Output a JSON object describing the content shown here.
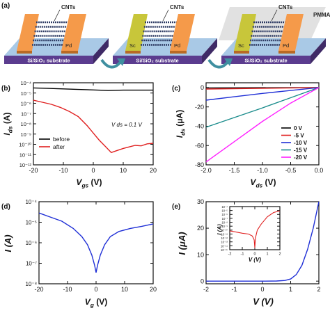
{
  "panels": {
    "a": {
      "label": "(a)",
      "devices": [
        {
          "substrate": "Si/SiO₂ substrate",
          "cnt": "CNTs",
          "contacts": [
            "",
            "Pd"
          ],
          "pmma": ""
        },
        {
          "substrate": "Si/SiO₂ substrate",
          "cnt": "CNTs",
          "contacts": [
            "Sc",
            "Pd"
          ],
          "pmma": ""
        },
        {
          "substrate": "Si/SiO₂ substrate",
          "cnt": "CNTs",
          "contacts": [
            "Sc",
            "Pd"
          ],
          "pmma": "PMMA"
        }
      ]
    },
    "b": {
      "label": "(b)",
      "annotation": "V_ds = 0.1 V"
    },
    "c": {
      "label": "(c)"
    },
    "d": {
      "label": "(d)"
    },
    "e": {
      "label": "(e)"
    }
  },
  "colors": {
    "pd": "#f59a4a",
    "sc": "#c8c63a",
    "substrate_top": "#a9c9e6",
    "substrate_side": "#5b3c8f",
    "cnt": "#2e3b63",
    "pmma": "#c9c9c9",
    "arrow": "#3f8fa0"
  },
  "chart_data": [
    {
      "panel": "b",
      "type": "line",
      "xlabel": "V_gs (V)",
      "ylabel": "I_ds (A)",
      "xlim": [
        -20,
        20
      ],
      "ylim": [
        -12,
        -4
      ],
      "yscale": "log",
      "xticks": [
        -20,
        -10,
        0,
        10,
        20
      ],
      "yticks": [
        -4,
        -5,
        -6,
        -7,
        -8,
        -9,
        -10,
        -11,
        -12
      ],
      "ytick_labels": [
        "10⁻⁴",
        "10⁻⁵",
        "10⁻⁶",
        "10⁻⁷",
        "10⁻⁸",
        "10⁻⁹",
        "10⁻¹⁰",
        "10⁻¹¹",
        "10⁻¹²"
      ],
      "legend": {
        "placement": "bottom-left"
      },
      "series": [
        {
          "name": "before",
          "color": "#000000",
          "x": [
            -20,
            -15,
            -10,
            -5,
            0,
            5,
            10,
            15,
            20
          ],
          "y": [
            -4.5,
            -4.55,
            -4.6,
            -4.65,
            -4.7,
            -4.75,
            -4.72,
            -4.72,
            -4.72
          ]
        },
        {
          "name": "after",
          "color": "#e02020",
          "x": [
            -20,
            -17,
            -14,
            -11,
            -8,
            -5,
            -2,
            0,
            2,
            4,
            6,
            8,
            10,
            12,
            14,
            16,
            18,
            20
          ],
          "y": [
            -5.7,
            -5.9,
            -6.1,
            -6.4,
            -6.8,
            -7.3,
            -8.2,
            -8.9,
            -9.6,
            -10.2,
            -10.8,
            -10.6,
            -10.4,
            -10.25,
            -10.1,
            -10.15,
            -9.95,
            -9.9
          ]
        }
      ]
    },
    {
      "panel": "c",
      "type": "line",
      "xlabel": "V_ds (V)",
      "ylabel": "I_ds (μA)",
      "xlim": [
        -2,
        0
      ],
      "ylim": [
        -80,
        5
      ],
      "xticks": [
        -2.0,
        -1.5,
        -1.0,
        -0.5,
        0.0
      ],
      "xtick_labels": [
        "-2.0",
        "-1.5",
        "-1.0",
        "-0.5",
        "0.0"
      ],
      "yticks": [
        0,
        -20,
        -40,
        -60,
        -80
      ],
      "legend": {
        "placement": "right"
      },
      "series": [
        {
          "name": "0 V",
          "color": "#000000",
          "x": [
            -2,
            0
          ],
          "y": [
            -0.3,
            0
          ]
        },
        {
          "name": "-5 V",
          "color": "#e02020",
          "x": [
            -2,
            0
          ],
          "y": [
            -1.5,
            0
          ]
        },
        {
          "name": "-10 V",
          "color": "#1f2fd6",
          "x": [
            -2,
            -1.5,
            -1,
            -0.5,
            0
          ],
          "y": [
            -13,
            -9.5,
            -6,
            -3,
            0
          ]
        },
        {
          "name": "-15 V",
          "color": "#1a8c8c",
          "x": [
            -2,
            -1.5,
            -1,
            -0.5,
            0
          ],
          "y": [
            -41,
            -31,
            -21,
            -10.5,
            0
          ]
        },
        {
          "name": "-20 V",
          "color": "#ff20ff",
          "x": [
            -2,
            -1.5,
            -1,
            -0.5,
            0
          ],
          "y": [
            -77,
            -56,
            -35,
            -16,
            0
          ]
        }
      ]
    },
    {
      "panel": "d",
      "type": "line",
      "xlabel": "V_g (V)",
      "ylabel": "I (A)",
      "xlim": [
        -20,
        20
      ],
      "ylim": [
        -8,
        -4
      ],
      "yscale": "log",
      "xticks": [
        -20,
        -10,
        0,
        10,
        20
      ],
      "yticks": [
        -4,
        -5,
        -6,
        -7,
        -8
      ],
      "ytick_labels": [
        "10⁻⁴",
        "10⁻⁵",
        "10⁻⁶",
        "10⁻⁷",
        "10⁻⁸"
      ],
      "series": [
        {
          "name": "",
          "color": "#1f2fd6",
          "x": [
            -20,
            -16,
            -12,
            -8,
            -5,
            -3,
            -1.5,
            -0.5,
            0,
            0.5,
            1.5,
            3,
            5,
            8,
            12,
            16,
            20
          ],
          "y": [
            -4.55,
            -4.75,
            -4.95,
            -5.3,
            -5.7,
            -6.1,
            -6.6,
            -7.1,
            -7.45,
            -7.1,
            -6.6,
            -6.1,
            -5.7,
            -5.45,
            -5.3,
            -5.2,
            -5.08
          ]
        }
      ]
    },
    {
      "panel": "e",
      "type": "line",
      "xlabel": "V (V)",
      "ylabel": "I (μA)",
      "xlim": [
        -2,
        2
      ],
      "ylim": [
        -1,
        30
      ],
      "xticks": [
        -2,
        -1,
        0,
        1,
        2
      ],
      "yticks": [
        0,
        10,
        20,
        30
      ],
      "series": [
        {
          "name": "",
          "color": "#1f2fd6",
          "x": [
            -2,
            -1,
            0,
            0.5,
            0.8,
            1.0,
            1.2,
            1.4,
            1.6,
            1.8,
            2.0
          ],
          "y": [
            0,
            0,
            0,
            0.05,
            0.25,
            0.8,
            2.5,
            6,
            12,
            20,
            30
          ]
        }
      ],
      "inset": {
        "type": "line",
        "xlabel": "V (V)",
        "ylabel": "I (A)",
        "yscale": "log",
        "xlim": [
          -2,
          2
        ],
        "ylim": [
          -15,
          -4
        ],
        "xticks": [
          -2,
          -1,
          0,
          1,
          2
        ],
        "yticks": [
          -4,
          -5,
          -6,
          -7,
          -8,
          -9,
          -10,
          -11,
          -12,
          -13,
          -14,
          -15
        ],
        "ytick_labels": [
          "10⁻⁴",
          "10⁻⁵",
          "10⁻⁶",
          "10⁻⁷",
          "10⁻⁸",
          "10⁻⁹",
          "10⁻¹⁰",
          "10⁻¹¹",
          "10⁻¹²",
          "10⁻¹³",
          "10⁻¹⁴",
          "10⁻¹⁵"
        ],
        "series": [
          {
            "name": "",
            "color": "#e02020",
            "x": [
              -2,
              -1.5,
              -1,
              -0.5,
              -0.2,
              -0.05,
              0,
              0.05,
              0.2,
              0.5,
              1,
              1.5,
              2
            ],
            "y": [
              -10.2,
              -10.5,
              -10.8,
              -11.0,
              -11.5,
              -12.5,
              -14.5,
              -12,
              -10,
              -8.5,
              -6.6,
              -5.5,
              -5.1
            ]
          }
        ]
      }
    }
  ]
}
